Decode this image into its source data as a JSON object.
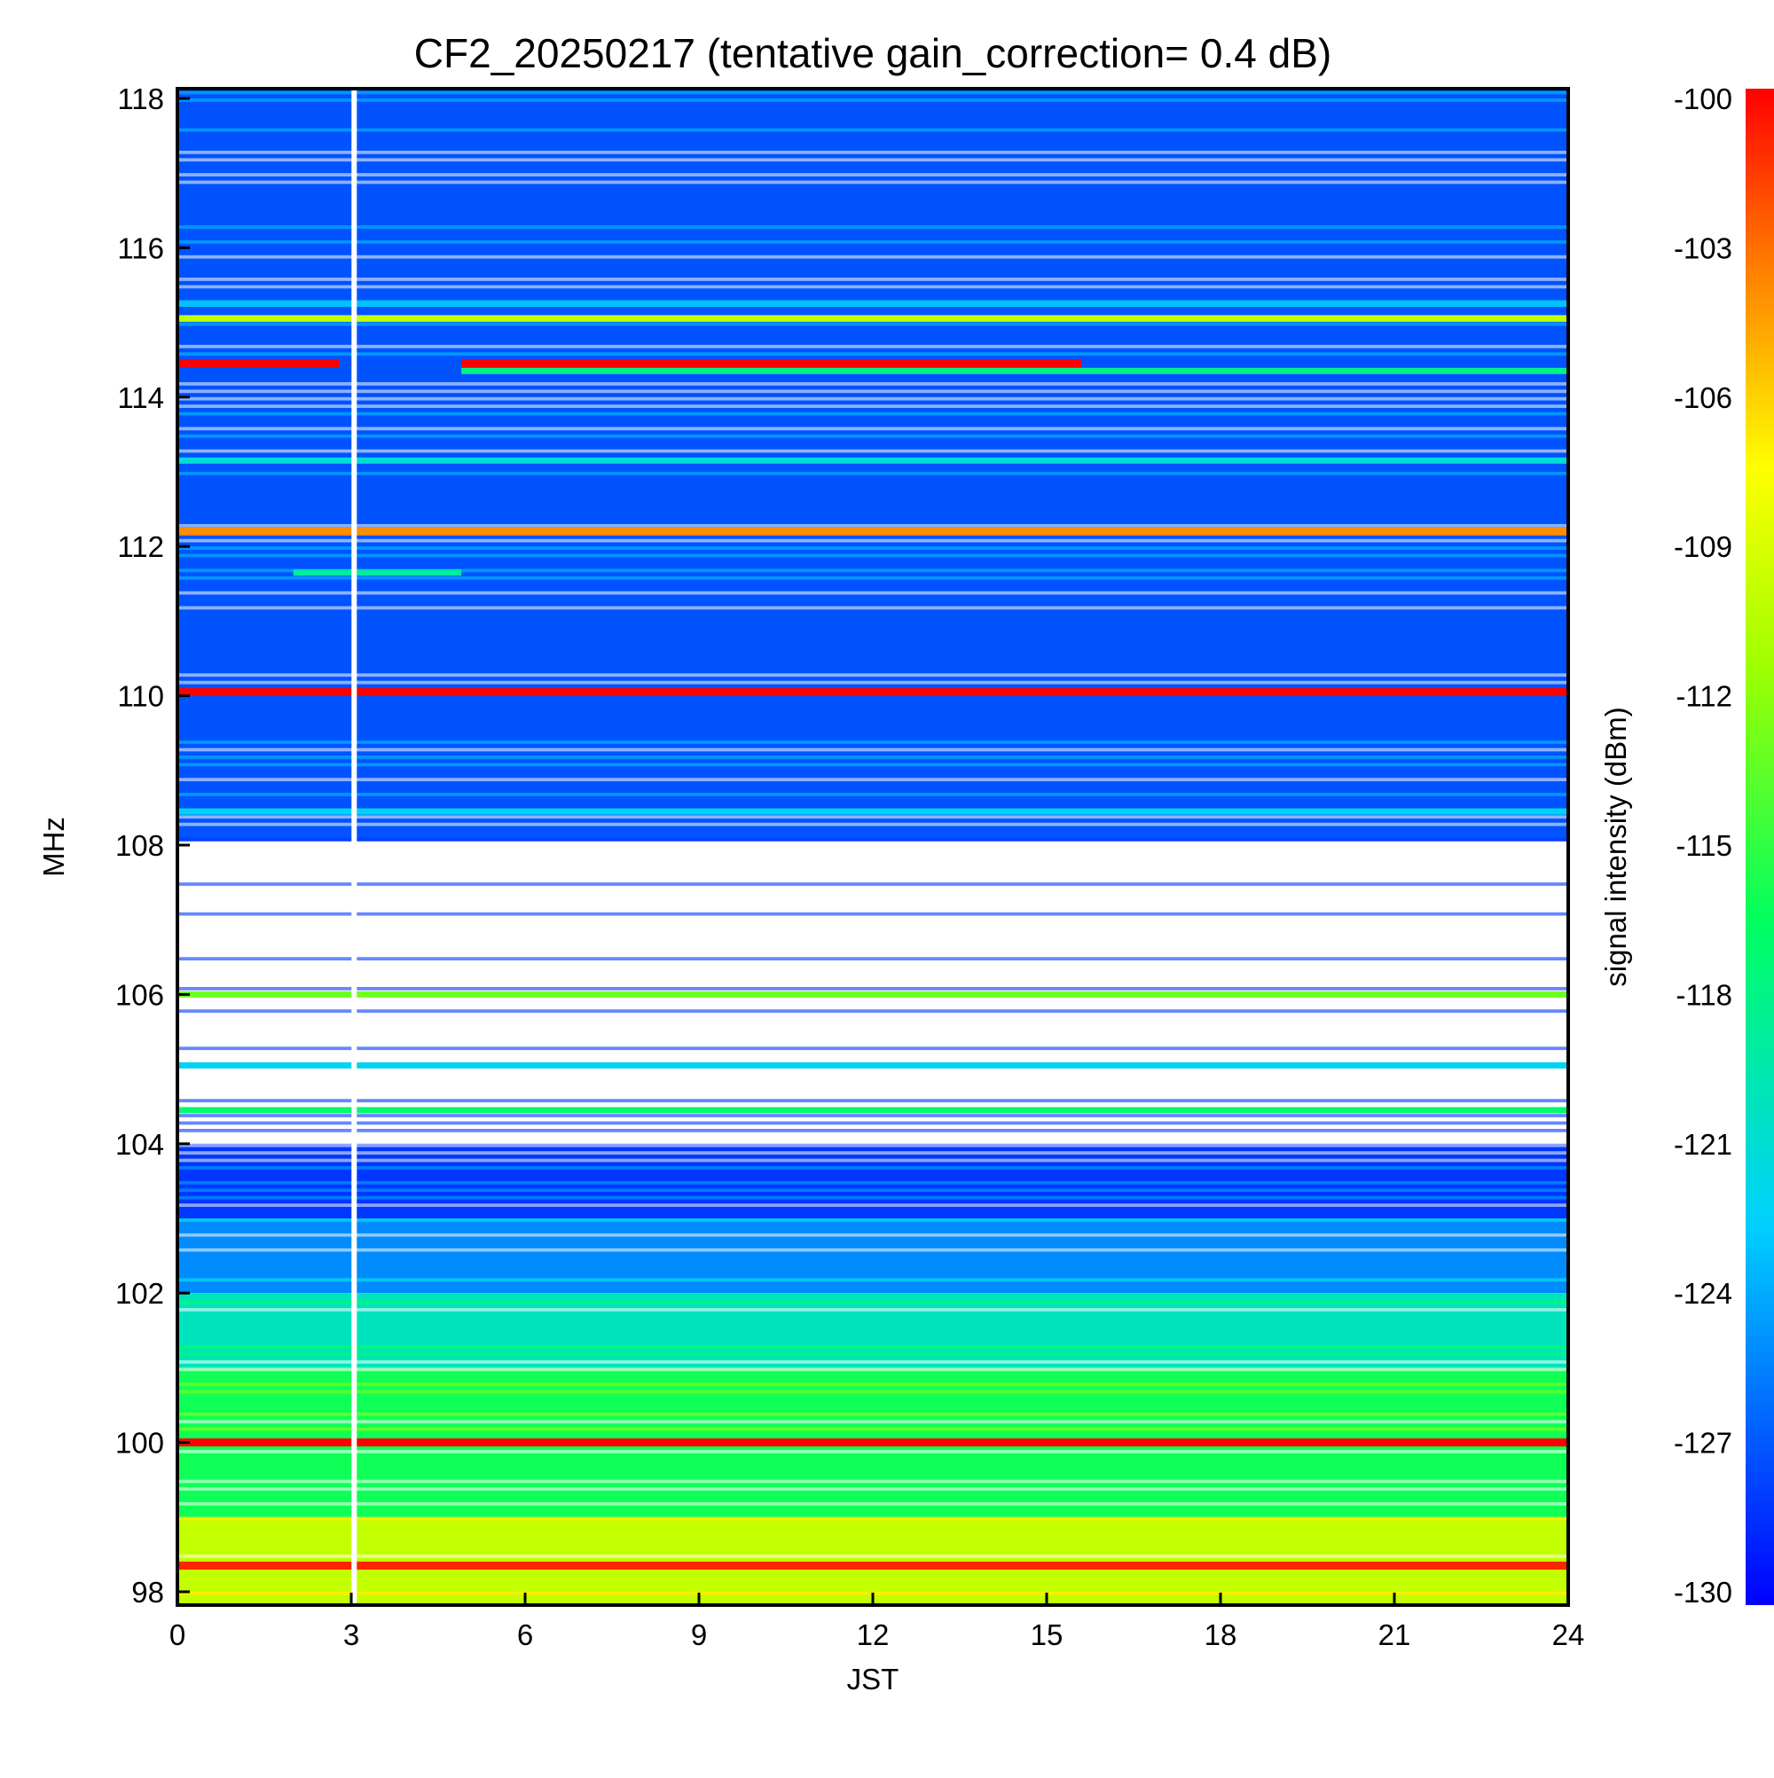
{
  "chart_data": {
    "type": "heatmap",
    "title": "CF2_20250217 (tentative gain_correction=  0.4 dB)",
    "xlabel": "JST",
    "ylabel": "MHz",
    "xlim": [
      0,
      24
    ],
    "ylim": [
      97.8,
      118.2
    ],
    "x_ticks": [
      "0",
      "3",
      "6",
      "9",
      "12",
      "15",
      "18",
      "21",
      "24"
    ],
    "y_ticks": [
      "98",
      "100",
      "102",
      "104",
      "106",
      "108",
      "110",
      "112",
      "114",
      "116",
      "118"
    ],
    "colorbar": {
      "label": "signal intensity (dBm)",
      "range": [
        -130,
        -100
      ],
      "ticks": [
        "-100",
        "-103",
        "-106",
        "-109",
        "-112",
        "-115",
        "-118",
        "-121",
        "-124",
        "-127",
        "-130"
      ],
      "colormap": "rainbow (blue to red)"
    },
    "data_gap": {
      "x": 3.05,
      "note": "white vertical gap"
    },
    "background_by_frequency": [
      {
        "freq_range": [
          108.05,
          118.2
        ],
        "approx_dBm": -127
      },
      {
        "freq_range": [
          104.0,
          108.0
        ],
        "approx_dBm": "sparse / no data (white)"
      },
      {
        "freq_range": [
          103.0,
          104.0
        ],
        "approx_dBm": -128
      },
      {
        "freq_range": [
          102.0,
          103.0
        ],
        "approx_dBm": -125
      },
      {
        "freq_range": [
          101.0,
          102.0
        ],
        "approx_dBm": -120
      },
      {
        "freq_range": [
          99.0,
          101.0
        ],
        "approx_dBm": -116
      },
      {
        "freq_range": [
          97.8,
          99.0
        ],
        "approx_dBm": -110
      }
    ],
    "strong_lines": [
      {
        "freq": 114.45,
        "dBm": -100,
        "x_ranges": [
          [
            0,
            2.8
          ],
          [
            4.9,
            15.6
          ]
        ]
      },
      {
        "freq": 112.2,
        "dBm": -104,
        "x_ranges": [
          [
            0,
            24
          ]
        ]
      },
      {
        "freq": 110.05,
        "dBm": -100,
        "x_ranges": [
          [
            0,
            24
          ]
        ]
      },
      {
        "freq": 100.0,
        "dBm": -100,
        "x_ranges": [
          [
            0,
            24
          ]
        ]
      },
      {
        "freq": 98.35,
        "dBm": -101,
        "x_ranges": [
          [
            0,
            24
          ]
        ]
      }
    ],
    "medium_lines": [
      {
        "freq": 115.25,
        "dBm": -123,
        "x_ranges": [
          [
            0,
            24
          ]
        ]
      },
      {
        "freq": 115.05,
        "dBm": -110,
        "x_ranges": [
          [
            0,
            24
          ]
        ]
      },
      {
        "freq": 114.35,
        "dBm": -118,
        "x_ranges": [
          [
            4.9,
            24
          ]
        ]
      },
      {
        "freq": 113.15,
        "dBm": -121,
        "x_ranges": [
          [
            0,
            24
          ]
        ]
      },
      {
        "freq": 111.65,
        "dBm": -119,
        "x_ranges": [
          [
            2.0,
            4.9
          ]
        ]
      },
      {
        "freq": 108.45,
        "dBm": -122,
        "x_ranges": [
          [
            0,
            24
          ]
        ]
      },
      {
        "freq": 105.05,
        "dBm": -122,
        "x_ranges": [
          [
            0,
            24
          ]
        ]
      },
      {
        "freq": 106.0,
        "dBm": -113,
        "x_ranges": [
          [
            0,
            24
          ]
        ]
      },
      {
        "freq": 104.45,
        "dBm": -117,
        "x_ranges": [
          [
            0,
            24
          ]
        ]
      }
    ]
  }
}
